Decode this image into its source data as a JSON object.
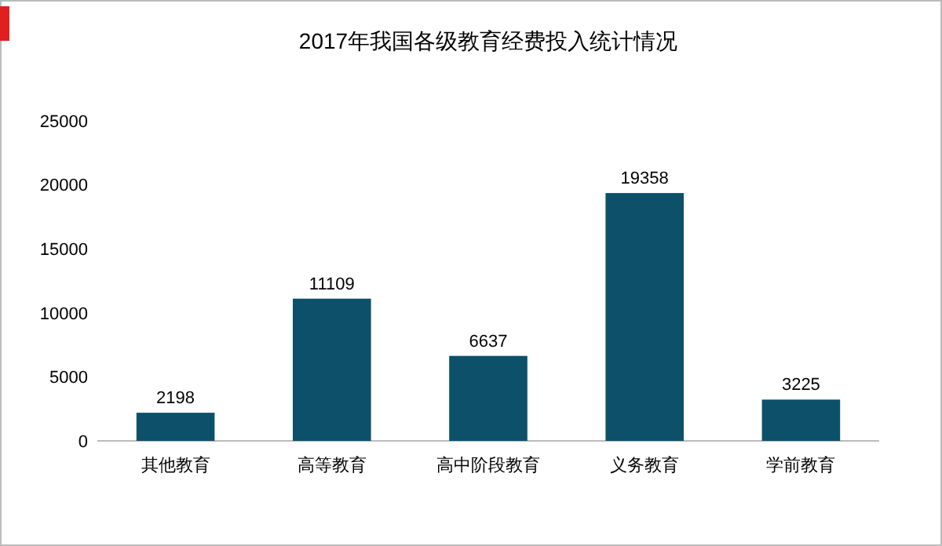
{
  "chart_data": {
    "type": "bar",
    "title": "2017年我国各级教育经费投入统计情况",
    "categories": [
      "其他教育",
      "高等教育",
      "高中阶段教育",
      "义务教育",
      "学前教育"
    ],
    "values": [
      2198,
      11109,
      6637,
      19358,
      3225
    ],
    "color": "#0d5069",
    "ylim": [
      0,
      25000
    ],
    "yticks": [
      0,
      5000,
      10000,
      15000,
      20000,
      25000
    ],
    "data_labels": true
  }
}
